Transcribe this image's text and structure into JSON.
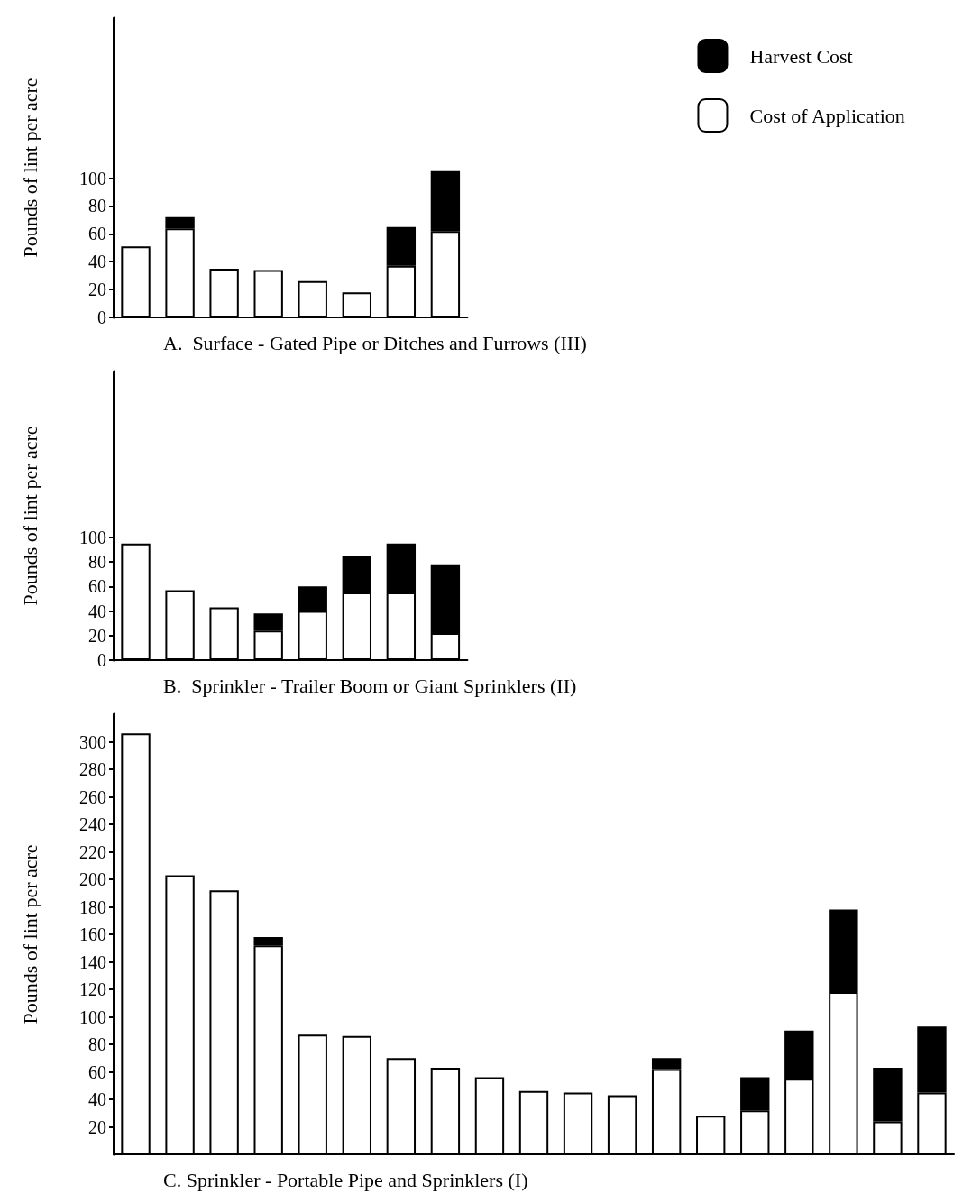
{
  "chart_data": [
    {
      "type": "bar",
      "title": "A.  Surface - Gated Pipe or Ditches and Furrows (III)",
      "ylabel": "Pounds of lint per acre",
      "stacked": true,
      "legend": "top right",
      "grid": false,
      "categories": [
        null,
        null,
        null,
        null,
        null,
        null,
        null,
        null
      ],
      "series": [
        {
          "name": "Cost of Application",
          "color": "#ffffff",
          "values": [
            51,
            64,
            35,
            34,
            26,
            18,
            37,
            62
          ]
        },
        {
          "name": "Harvest Cost",
          "color": "#000000",
          "values": [
            null,
            8,
            null,
            null,
            null,
            null,
            28,
            43
          ]
        }
      ],
      "ylim": [
        0,
        215
      ],
      "yticks": [
        0,
        20,
        40,
        60,
        80,
        100
      ]
    },
    {
      "type": "bar",
      "title": "B.  Sprinkler - Trailer Boom or Giant Sprinklers (II)",
      "ylabel": "Pounds of lint per acre",
      "stacked": true,
      "legend": false,
      "grid": false,
      "categories": [
        null,
        null,
        null,
        null,
        null,
        null,
        null,
        null
      ],
      "series": [
        {
          "color": "#ffffff",
          "values": [
            95,
            57,
            43,
            24,
            40,
            55,
            55,
            22
          ]
        },
        {
          "color": "#000000",
          "values": [
            null,
            null,
            null,
            14,
            20,
            30,
            40,
            56
          ]
        }
      ],
      "ylim": [
        0,
        235
      ],
      "yticks": [
        0,
        20,
        40,
        60,
        80,
        100
      ]
    },
    {
      "type": "bar",
      "title": "C. Sprinkler - Portable Pipe and Sprinklers (I)",
      "ylabel": "Pounds of lint per acre",
      "stacked": true,
      "legend": false,
      "grid": false,
      "categories": [
        null,
        null,
        null,
        null,
        null,
        null,
        null,
        null,
        null,
        null,
        null,
        null,
        null,
        null,
        null,
        null,
        null,
        null,
        null
      ],
      "series": [
        {
          "color": "#ffffff",
          "values": [
            306,
            203,
            192,
            152,
            87,
            86,
            70,
            63,
            56,
            46,
            45,
            43,
            62,
            28,
            32,
            55,
            118,
            24,
            45
          ]
        },
        {
          "color": "#000000",
          "values": [
            null,
            null,
            null,
            6,
            null,
            null,
            null,
            null,
            null,
            null,
            null,
            null,
            8,
            null,
            24,
            35,
            60,
            39,
            48
          ]
        }
      ],
      "ylim": [
        0,
        320
      ],
      "yticks": [
        20,
        40,
        60,
        80,
        100,
        120,
        140,
        160,
        180,
        200,
        220,
        240,
        260,
        280,
        300
      ]
    }
  ]
}
